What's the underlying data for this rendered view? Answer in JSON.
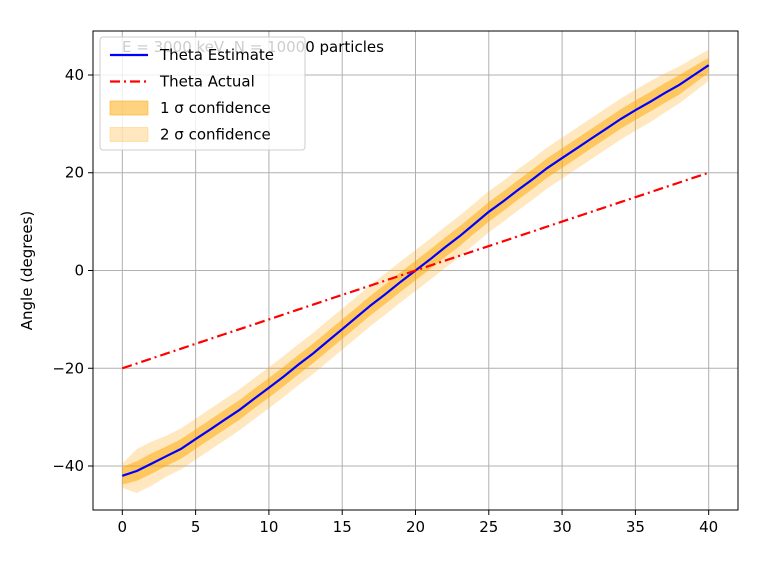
{
  "chart_data": {
    "type": "line",
    "title": "",
    "annotation": "E = 3000 keV, N = 10000 particles",
    "xlabel": "",
    "ylabel": "Angle (degrees)",
    "xlim": [
      -2,
      42
    ],
    "ylim": [
      -49,
      49
    ],
    "xticks": [
      0,
      5,
      10,
      15,
      20,
      25,
      30,
      35,
      40
    ],
    "yticks": [
      -40,
      -20,
      0,
      20,
      40
    ],
    "xtick_labels": [
      "0",
      "5",
      "10",
      "15",
      "20",
      "25",
      "30",
      "35",
      "40"
    ],
    "ytick_labels": [
      "−40",
      "−20",
      "0",
      "20",
      "40"
    ],
    "grid": true,
    "legend_position": "top-left",
    "x": [
      0,
      1,
      2,
      3,
      4,
      5,
      6,
      7,
      8,
      9,
      10,
      11,
      12,
      13,
      14,
      15,
      16,
      17,
      18,
      19,
      20,
      21,
      22,
      23,
      24,
      25,
      26,
      27,
      28,
      29,
      30,
      31,
      32,
      33,
      34,
      35,
      36,
      37,
      38,
      39,
      40
    ],
    "series": [
      {
        "name": "Theta Estimate",
        "color": "#0000ff",
        "style": "solid",
        "values": [
          -42,
          -41,
          -39.5,
          -38,
          -36.5,
          -34.5,
          -32.5,
          -30.5,
          -28.5,
          -26.2,
          -24,
          -21.7,
          -19.3,
          -17,
          -14.5,
          -12,
          -9.5,
          -7,
          -4.7,
          -2.3,
          0,
          2.3,
          4.7,
          7,
          9.5,
          12,
          14.2,
          16.5,
          18.7,
          21,
          23,
          25,
          27,
          29,
          31,
          32.8,
          34.5,
          36.3,
          38,
          40,
          42
        ]
      },
      {
        "name": "Theta Actual",
        "color": "#ff0000",
        "style": "dashdot",
        "values": [
          -20,
          -19,
          -18,
          -17,
          -16,
          -15,
          -14,
          -13,
          -12,
          -11,
          -10,
          -9,
          -8,
          -7,
          -6,
          -5,
          -4,
          -3,
          -2,
          -1,
          0,
          1,
          2,
          3,
          4,
          5,
          6,
          7,
          8,
          9,
          10,
          11,
          12,
          13,
          14,
          15,
          16,
          17,
          18,
          19,
          20
        ]
      }
    ],
    "bands": [
      {
        "name": "1 σ confidence",
        "color": "#ffa500",
        "opacity": 0.5,
        "halfwidth": [
          1.8,
          2.0,
          2.1,
          2.0,
          2.0,
          2.0,
          2.0,
          2.0,
          2.0,
          2.0,
          2.0,
          2.0,
          2.0,
          2.0,
          2.0,
          2.0,
          2.0,
          2.0,
          2.0,
          2.0,
          2.0,
          2.0,
          2.0,
          2.0,
          2.0,
          2.0,
          2.0,
          2.0,
          2.0,
          2.0,
          2.0,
          2.0,
          2.0,
          2.0,
          2.0,
          2.0,
          2.0,
          2.0,
          2.0,
          1.8,
          1.5
        ]
      },
      {
        "name": "2 σ confidence",
        "color": "#ffa500",
        "opacity": 0.25,
        "halfwidth": [
          2.5,
          4.5,
          4.5,
          4.2,
          4.2,
          4.2,
          4.2,
          4.2,
          4.2,
          4.2,
          4.2,
          4.2,
          4.2,
          4.2,
          4.2,
          4.2,
          4.2,
          4.2,
          4.2,
          4.2,
          4.2,
          4.2,
          4.2,
          4.2,
          4.2,
          4.2,
          4.2,
          4.2,
          4.2,
          4.2,
          4.2,
          4.2,
          4.2,
          4.2,
          4.2,
          4.2,
          4.2,
          4.0,
          3.8,
          3.5,
          3.2
        ]
      }
    ]
  }
}
